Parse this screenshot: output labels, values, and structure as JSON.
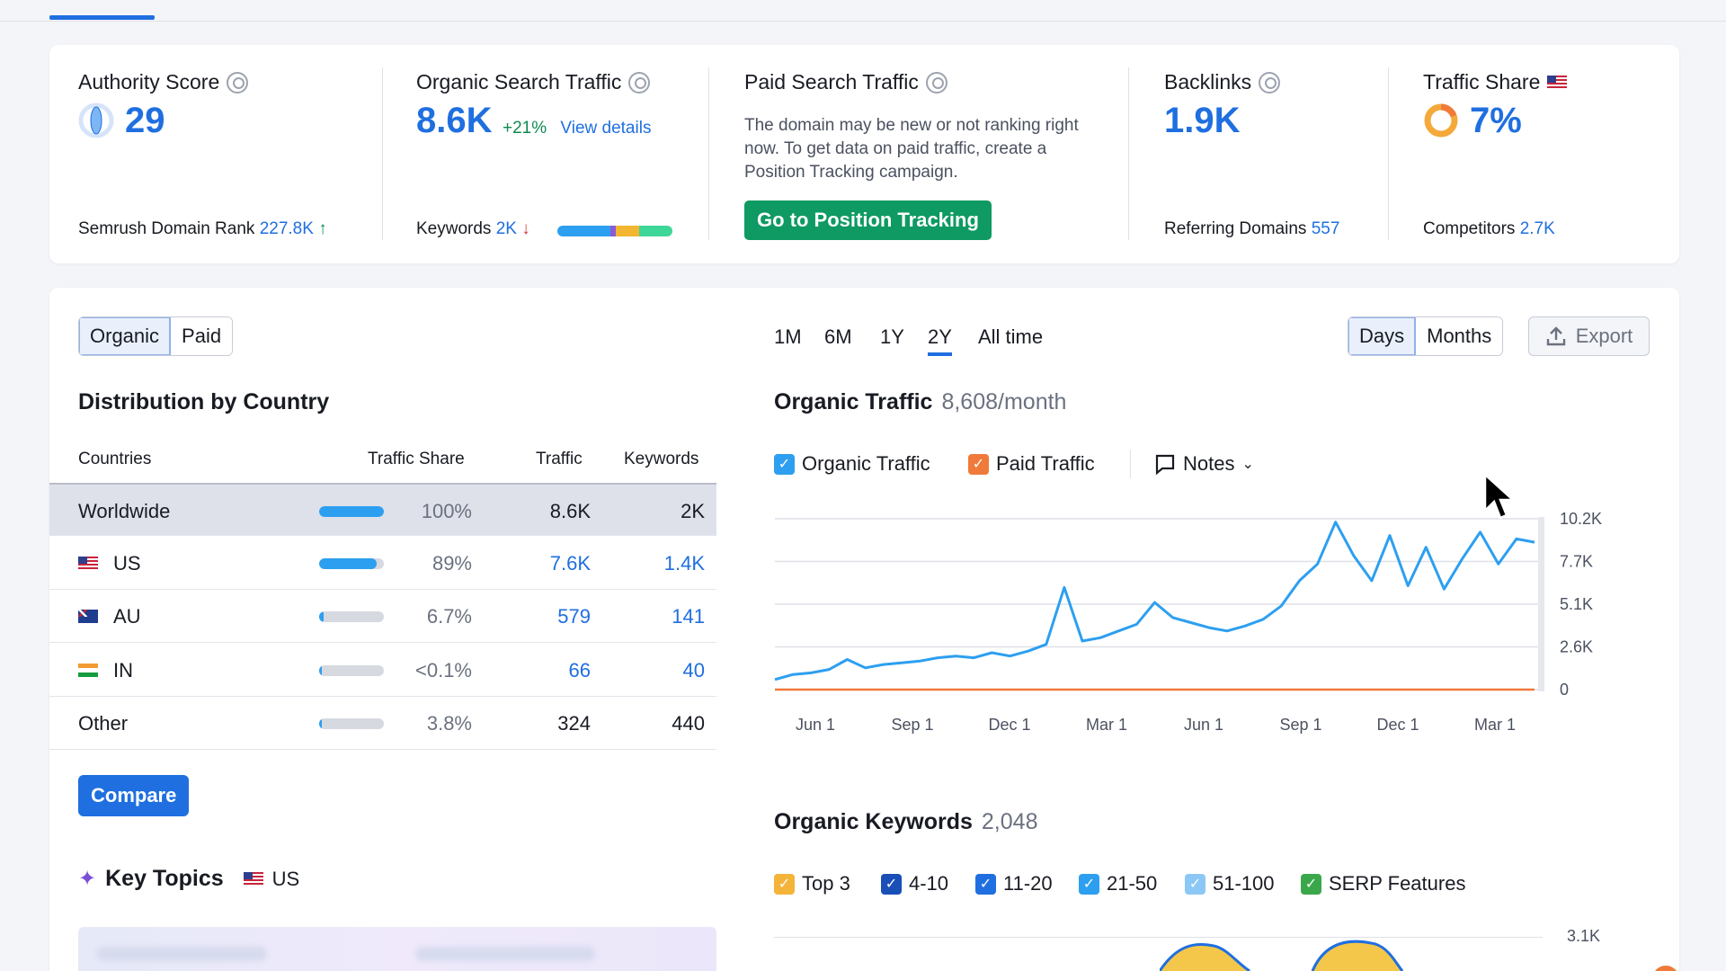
{
  "summary": {
    "authority": {
      "title": "Authority Score",
      "value": "29",
      "foot_label": "Semrush Domain Rank",
      "foot_value": "227.8K",
      "foot_arrow": "↑"
    },
    "organic": {
      "title": "Organic Search Traffic",
      "value": "8.6K",
      "change": "+21%",
      "link": "View details",
      "foot_label": "Keywords",
      "foot_value": "2K",
      "foot_arrow": "↓"
    },
    "paid": {
      "title": "Paid Search Traffic",
      "desc": "The domain may be new or not ranking right now. To get data on paid traffic, create a Position Tracking campaign.",
      "button": "Go to Position Tracking"
    },
    "backlinks": {
      "title": "Backlinks",
      "value": "1.9K",
      "foot_label": "Referring Domains",
      "foot_value": "557"
    },
    "share": {
      "title": "Traffic Share",
      "value": "7%",
      "foot_label": "Competitors",
      "foot_value": "2.7K"
    }
  },
  "toggle": {
    "organic": "Organic",
    "paid": "Paid"
  },
  "distribution": {
    "title": "Distribution by Country",
    "headers": {
      "countries": "Countries",
      "share": "Traffic Share",
      "traffic": "Traffic",
      "keywords": "Keywords"
    },
    "rows": [
      {
        "name": "Worldwide",
        "share": "100%",
        "traffic": "8.6K",
        "keywords": "2K",
        "bar": 1.0
      },
      {
        "name": "US",
        "share": "89%",
        "traffic": "7.6K",
        "keywords": "1.4K",
        "bar": 0.89
      },
      {
        "name": "AU",
        "share": "6.7%",
        "traffic": "579",
        "keywords": "141",
        "bar": 0.067
      },
      {
        "name": "IN",
        "share": "<0.1%",
        "traffic": "66",
        "keywords": "40",
        "bar": 0.001
      },
      {
        "name": "Other",
        "share": "3.8%",
        "traffic": "324",
        "keywords": "440",
        "bar": 0.038
      }
    ],
    "compare": "Compare"
  },
  "key_topics": {
    "title": "Key Topics",
    "country": "US"
  },
  "ranges": [
    "1M",
    "6M",
    "1Y",
    "2Y",
    "All time"
  ],
  "granularity": {
    "days": "Days",
    "months": "Months"
  },
  "export": "Export",
  "organic_traffic": {
    "title": "Organic Traffic",
    "subtitle": "8,608/month"
  },
  "legend": {
    "organic": "Organic Traffic",
    "paid": "Paid Traffic",
    "notes": "Notes"
  },
  "organic_keywords": {
    "title": "Organic Keywords",
    "subtitle": "2,048",
    "filters": [
      "Top 3",
      "4-10",
      "11-20",
      "21-50",
      "51-100",
      "SERP Features"
    ],
    "y_top": "3.1K"
  },
  "colors": {
    "accent": "#1f6fe0",
    "line": "#2d9ff0",
    "paid": "#f07a3a",
    "green": "#0e9a62"
  },
  "chart_data": {
    "type": "line",
    "x_ticks": [
      "Jun 1",
      "Sep 1",
      "Dec 1",
      "Mar 1",
      "Jun 1",
      "Sep 1",
      "Dec 1",
      "Mar 1"
    ],
    "y_ticks": [
      "10.2K",
      "7.7K",
      "5.1K",
      "2.6K",
      "0"
    ],
    "ylim": [
      0,
      10200
    ],
    "series": [
      {
        "name": "Organic Traffic",
        "values": [
          600,
          900,
          1000,
          1200,
          1800,
          1300,
          1500,
          1600,
          1700,
          1900,
          2000,
          1900,
          2200,
          2000,
          2300,
          2700,
          6100,
          2900,
          3100,
          3500,
          3900,
          5200,
          4300,
          4000,
          3700,
          3500,
          3800,
          4200,
          5000,
          6500,
          7500,
          10000,
          8000,
          6500,
          9200,
          6200,
          8500,
          6000,
          7800,
          9400,
          7500,
          9000,
          8800
        ]
      },
      {
        "name": "Paid Traffic",
        "values": [
          0,
          0,
          0,
          0,
          0,
          0,
          0,
          0,
          0,
          0,
          0,
          0,
          0,
          0,
          0,
          0,
          0,
          0,
          0,
          0,
          0,
          0,
          0,
          0,
          0,
          0,
          0,
          0,
          0,
          0,
          0,
          0,
          0,
          0,
          0,
          0,
          0,
          0,
          0,
          0,
          0,
          0,
          0
        ]
      }
    ]
  }
}
